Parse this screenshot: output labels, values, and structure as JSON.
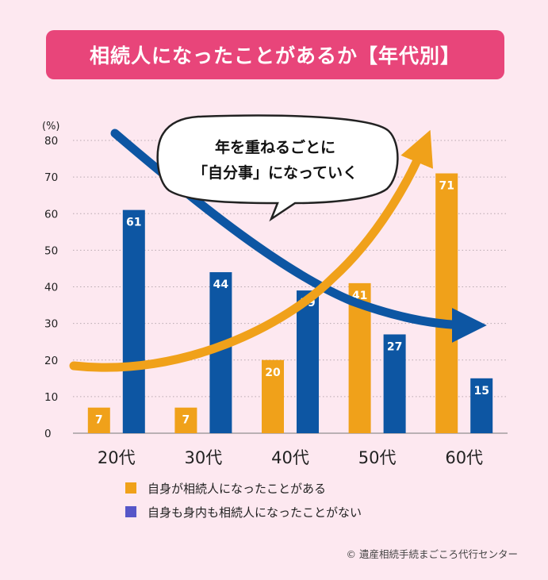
{
  "title": "相続人になったことがあるか【年代別】",
  "chart_data": {
    "type": "bar",
    "categories": [
      "20代",
      "30代",
      "40代",
      "50代",
      "60代"
    ],
    "series": [
      {
        "name": "自身が相続人になったことがある",
        "color": "#f0a11a",
        "values": [
          7,
          7,
          20,
          41,
          71
        ]
      },
      {
        "name": "自身も身内も相続人になったことがない",
        "color": "#0d56a3",
        "values": [
          61,
          44,
          39,
          27,
          15
        ]
      }
    ],
    "ylabel": "(%)",
    "ylim": [
      0,
      80
    ],
    "yticks": [
      0,
      10,
      20,
      30,
      40,
      50,
      60,
      70,
      80
    ],
    "grid": true,
    "annotation": {
      "line1": "年を重ねるごとに",
      "line2": "「自分事」になっていく"
    },
    "legend_position": "bottom"
  },
  "legend_swatch_colors": [
    "#f0a11a",
    "#5656c8"
  ],
  "credit": "© 遺産相続手続まごころ代行センター"
}
